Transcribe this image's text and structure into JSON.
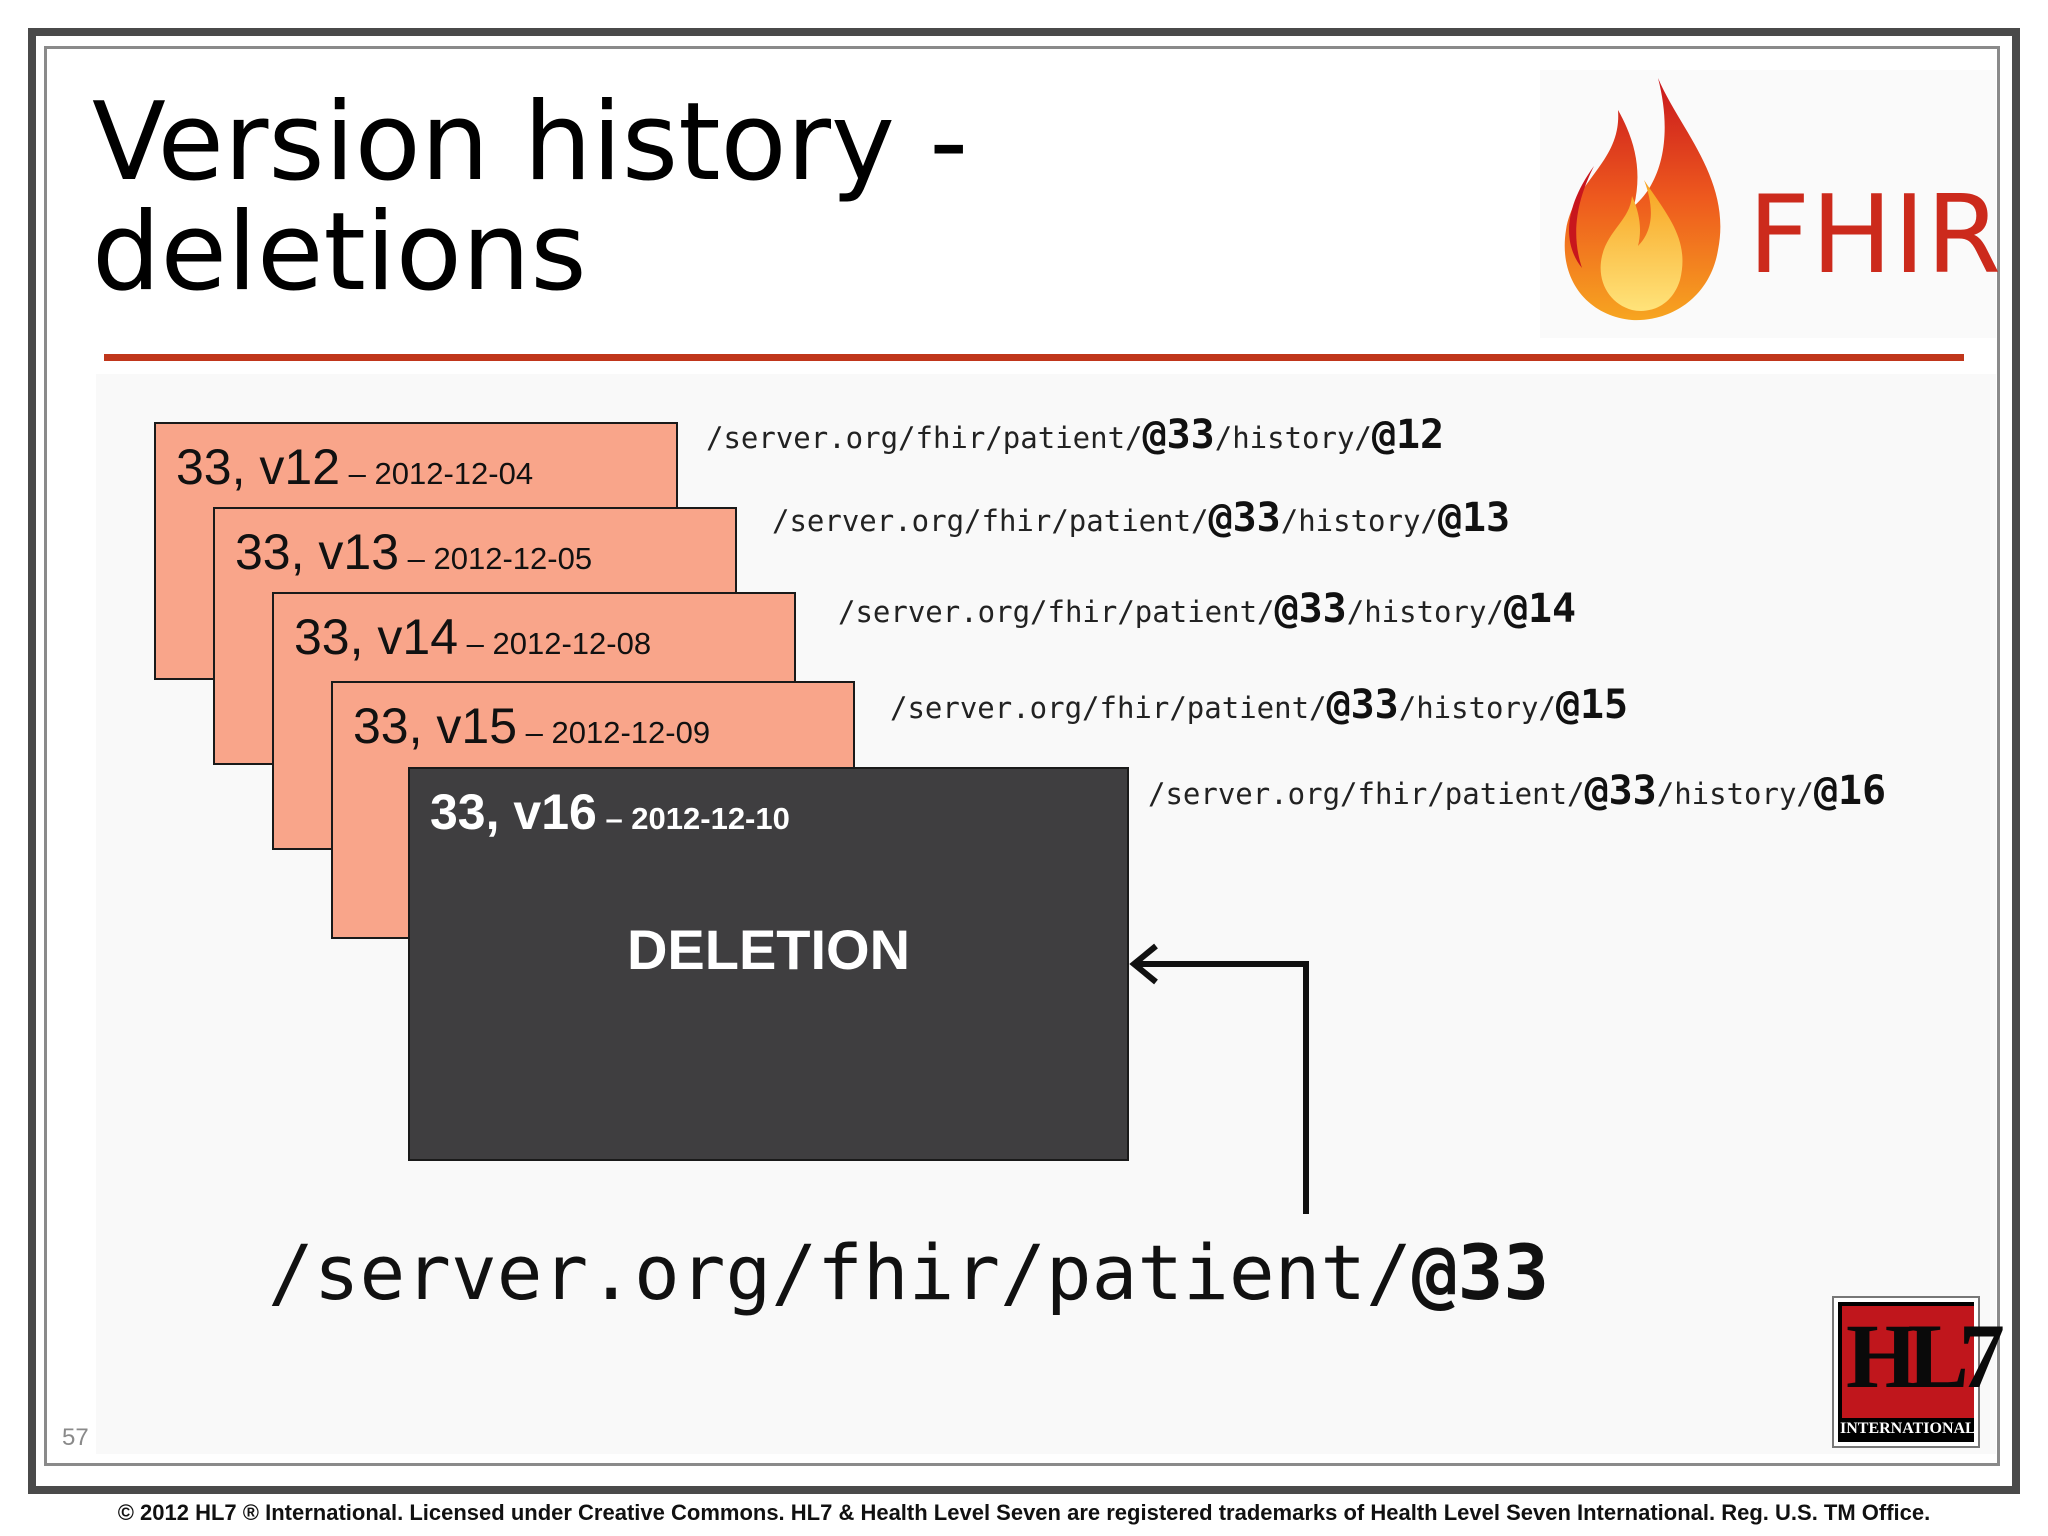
{
  "slide": {
    "title_line1": "Version history -",
    "title_line2": "deletions",
    "page_number": "57",
    "footer": "© 2012 HL7 ® International. Licensed under Creative Commons. HL7 & Health Level Seven are registered trademarks of Health Level Seven International. Reg. U.S. TM Office."
  },
  "logos": {
    "fhir_text": "FHIR",
    "hl7_text": "HL7",
    "hl7_subtext": "INTERNATIONAL"
  },
  "versions": [
    {
      "label": "33, v12",
      "date": " – 2012-12-04",
      "url_prefix": "/server.org/fhir/patient/",
      "id": "@33",
      "mid": "/history/",
      "version": "@12"
    },
    {
      "label": "33, v13",
      "date": " – 2012-12-05",
      "url_prefix": "/server.org/fhir/patient/",
      "id": "@33",
      "mid": "/history/",
      "version": "@13"
    },
    {
      "label": "33, v14",
      "date": " – 2012-12-08",
      "url_prefix": "/server.org/fhir/patient/",
      "id": "@33",
      "mid": "/history/",
      "version": "@14"
    },
    {
      "label": "33, v15",
      "date": " – 2012-12-09",
      "url_prefix": "/server.org/fhir/patient/",
      "id": "@33",
      "mid": "/history/",
      "version": "@15"
    },
    {
      "label": "33, v16",
      "date": " – 2012-12-10",
      "url_prefix": "/server.org/fhir/patient/",
      "id": "@33",
      "mid": "/history/",
      "version": "@16",
      "content": "DELETION"
    }
  ],
  "main_url": {
    "prefix": "/server.org/fhir/patient/",
    "id": "@33"
  },
  "colors": {
    "card_fill": "#f9a58a",
    "deleted_fill": "#3f3e40",
    "rule": "#c0361b",
    "fhir_red": "#cc2a1c"
  }
}
